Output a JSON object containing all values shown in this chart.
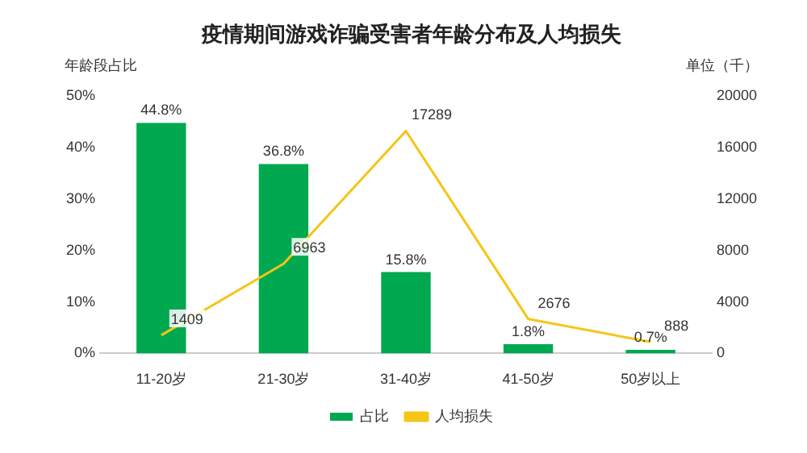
{
  "chart_data": {
    "type": "bar",
    "title": "疫情期间游戏诈骗受害者年龄分布及人均损失",
    "ylabel": "年龄段占比",
    "y2label": "单位（千）",
    "categories": [
      "11-20岁",
      "21-30岁",
      "31-40岁",
      "41-50岁",
      "50岁以上"
    ],
    "series": [
      {
        "name": "占比",
        "color": "#00a84f",
        "values": [
          44.8,
          36.8,
          15.8,
          1.8,
          0.7
        ],
        "value_labels": [
          "44.8%",
          "36.8%",
          "15.8%",
          "1.8%",
          "0.7%"
        ]
      },
      {
        "name": "人均损失",
        "type": "line",
        "axis": "y2",
        "color": "#f5c518",
        "values": [
          1409,
          6963,
          17289,
          2676,
          888
        ],
        "value_labels": [
          "1409",
          "6963",
          "17289",
          "2676",
          "888"
        ]
      }
    ],
    "ylim": [
      0,
      50
    ],
    "yticks": [
      {
        "value": 0,
        "label": "0%"
      },
      {
        "value": 10,
        "label": "10%"
      },
      {
        "value": 20,
        "label": "20%"
      },
      {
        "value": 30,
        "label": "30%"
      },
      {
        "value": 40,
        "label": "40%"
      },
      {
        "value": 50,
        "label": "50%"
      }
    ],
    "y2lim": [
      0,
      20000
    ],
    "y2ticks": [
      0,
      4000,
      8000,
      12000,
      16000,
      20000
    ],
    "grid": false,
    "legend": "bottom",
    "marker": "none"
  }
}
